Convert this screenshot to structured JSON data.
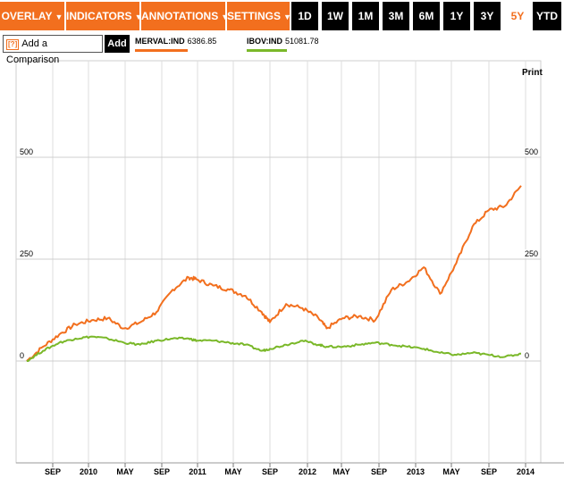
{
  "toolbar": {
    "menus": [
      {
        "label": "OVERLAY",
        "caret": "▼"
      },
      {
        "label": "INDICATORS",
        "caret": "▼"
      },
      {
        "label": "ANNOTATIONS",
        "caret": "▼"
      },
      {
        "label": "SETTINGS",
        "caret": "▼"
      }
    ],
    "ranges": [
      "1D",
      "1W",
      "1M",
      "3M",
      "6M",
      "1Y",
      "3Y",
      "5Y",
      "YTD"
    ],
    "active_range": "5Y",
    "accent_color": "#f26f1e"
  },
  "compare": {
    "help_glyph": "?",
    "label": "Add a Comparison",
    "add_label": "Add"
  },
  "legend": [
    {
      "symbol": "MERVAL:IND",
      "value": "6386.85",
      "color": "#f26f1e"
    },
    {
      "symbol": "IBOV:IND",
      "value": "51081.78",
      "color": "#7ab829"
    }
  ],
  "print_label": "Print",
  "chart_data": {
    "type": "line",
    "title": "",
    "xlabel": "",
    "ylabel": "",
    "x_ticks": [
      "SEP",
      "2010",
      "MAY",
      "SEP",
      "2011",
      "MAY",
      "SEP",
      "2012",
      "MAY",
      "SEP",
      "2013",
      "MAY",
      "SEP",
      "2014"
    ],
    "y_ticks": [
      0,
      250,
      500
    ],
    "ylim": [
      -250,
      500
    ],
    "grid": true,
    "x_range": [
      "2009-05",
      "2014-05"
    ],
    "series": [
      {
        "name": "MERVAL:IND",
        "color": "#f26f1e",
        "x": [
          "2009-04",
          "2009-06",
          "2009-08",
          "2009-10",
          "2009-12",
          "2010-02",
          "2010-04",
          "2010-06",
          "2010-08",
          "2010-10",
          "2010-12",
          "2011-01",
          "2011-03",
          "2011-05",
          "2011-07",
          "2011-09",
          "2011-10",
          "2011-12",
          "2012-02",
          "2012-04",
          "2012-05",
          "2012-07",
          "2012-09",
          "2012-11",
          "2013-01",
          "2013-03",
          "2013-05",
          "2013-07",
          "2013-09",
          "2013-11",
          "2014-01",
          "2014-03",
          "2014-05"
        ],
        "values": [
          0,
          35,
          65,
          90,
          100,
          105,
          80,
          95,
          120,
          175,
          205,
          200,
          185,
          175,
          160,
          120,
          95,
          140,
          130,
          105,
          80,
          105,
          110,
          100,
          175,
          195,
          230,
          165,
          240,
          330,
          370,
          380,
          430
        ]
      },
      {
        "name": "IBOV:IND",
        "color": "#7ab829",
        "x": [
          "2009-04",
          "2009-06",
          "2009-08",
          "2009-10",
          "2009-12",
          "2010-02",
          "2010-04",
          "2010-06",
          "2010-08",
          "2010-10",
          "2010-12",
          "2011-01",
          "2011-03",
          "2011-05",
          "2011-07",
          "2011-09",
          "2011-10",
          "2011-12",
          "2012-02",
          "2012-04",
          "2012-05",
          "2012-07",
          "2012-09",
          "2012-11",
          "2013-01",
          "2013-03",
          "2013-05",
          "2013-07",
          "2013-09",
          "2013-11",
          "2014-01",
          "2014-03",
          "2014-05"
        ],
        "values": [
          0,
          25,
          45,
          55,
          60,
          55,
          45,
          40,
          50,
          55,
          55,
          50,
          50,
          45,
          40,
          25,
          30,
          40,
          50,
          40,
          35,
          35,
          40,
          45,
          40,
          35,
          30,
          20,
          15,
          20,
          15,
          10,
          18
        ]
      }
    ]
  }
}
